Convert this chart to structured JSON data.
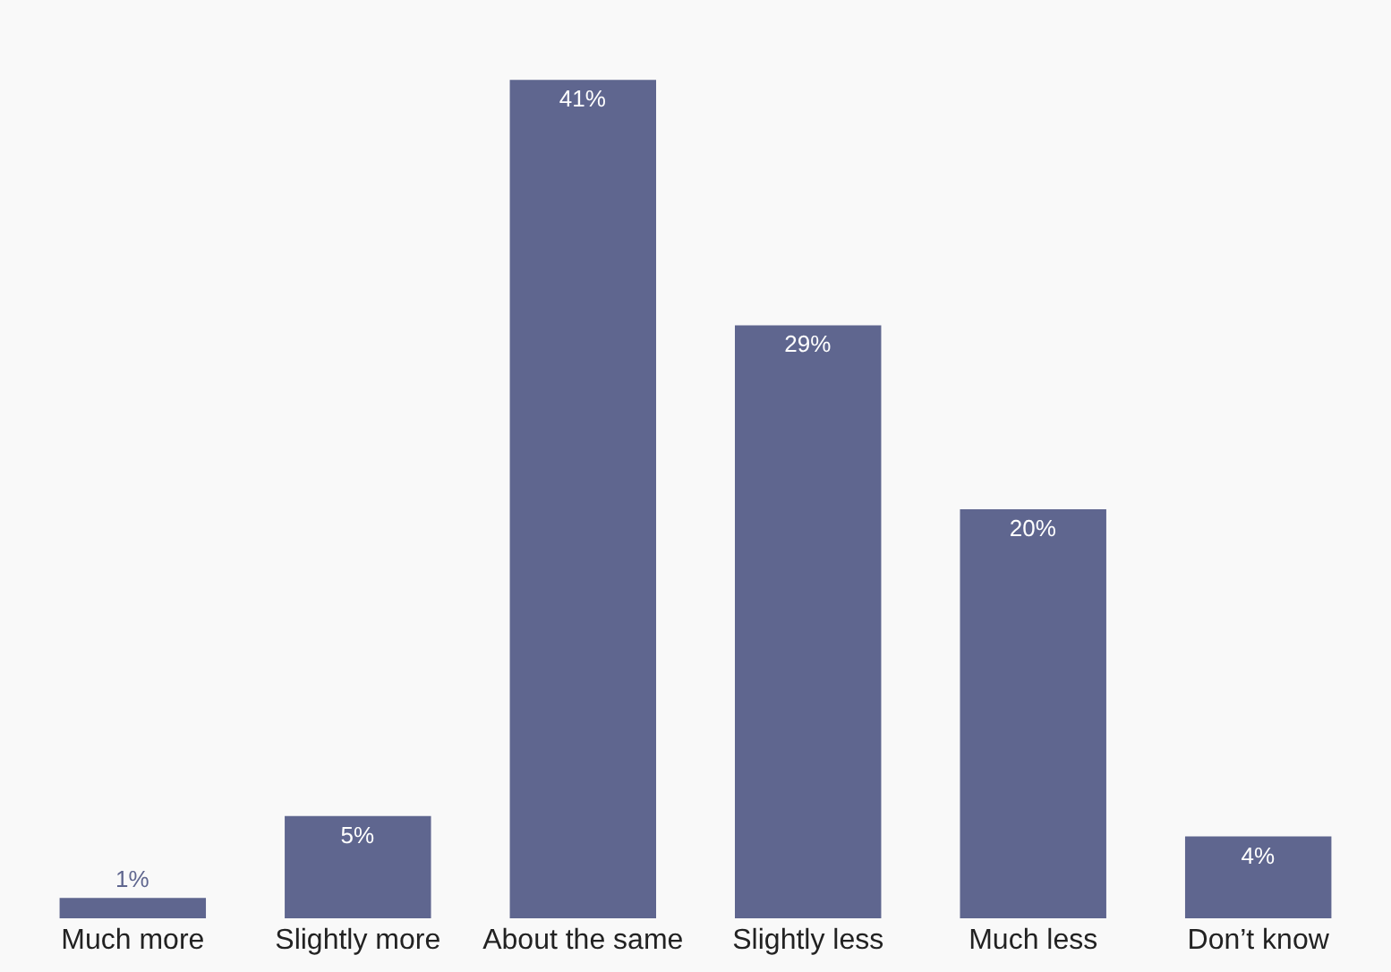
{
  "chart_data": {
    "type": "bar",
    "categories": [
      "Much more",
      "Slightly more",
      "About the same",
      "Slightly less",
      "Much less",
      "Don’t know"
    ],
    "values": [
      1,
      5,
      41,
      29,
      20,
      4
    ],
    "value_labels": [
      "1%",
      "5%",
      "41%",
      "29%",
      "20%",
      "4%"
    ],
    "color": "#5f668f",
    "grid": false,
    "legend": false
  }
}
